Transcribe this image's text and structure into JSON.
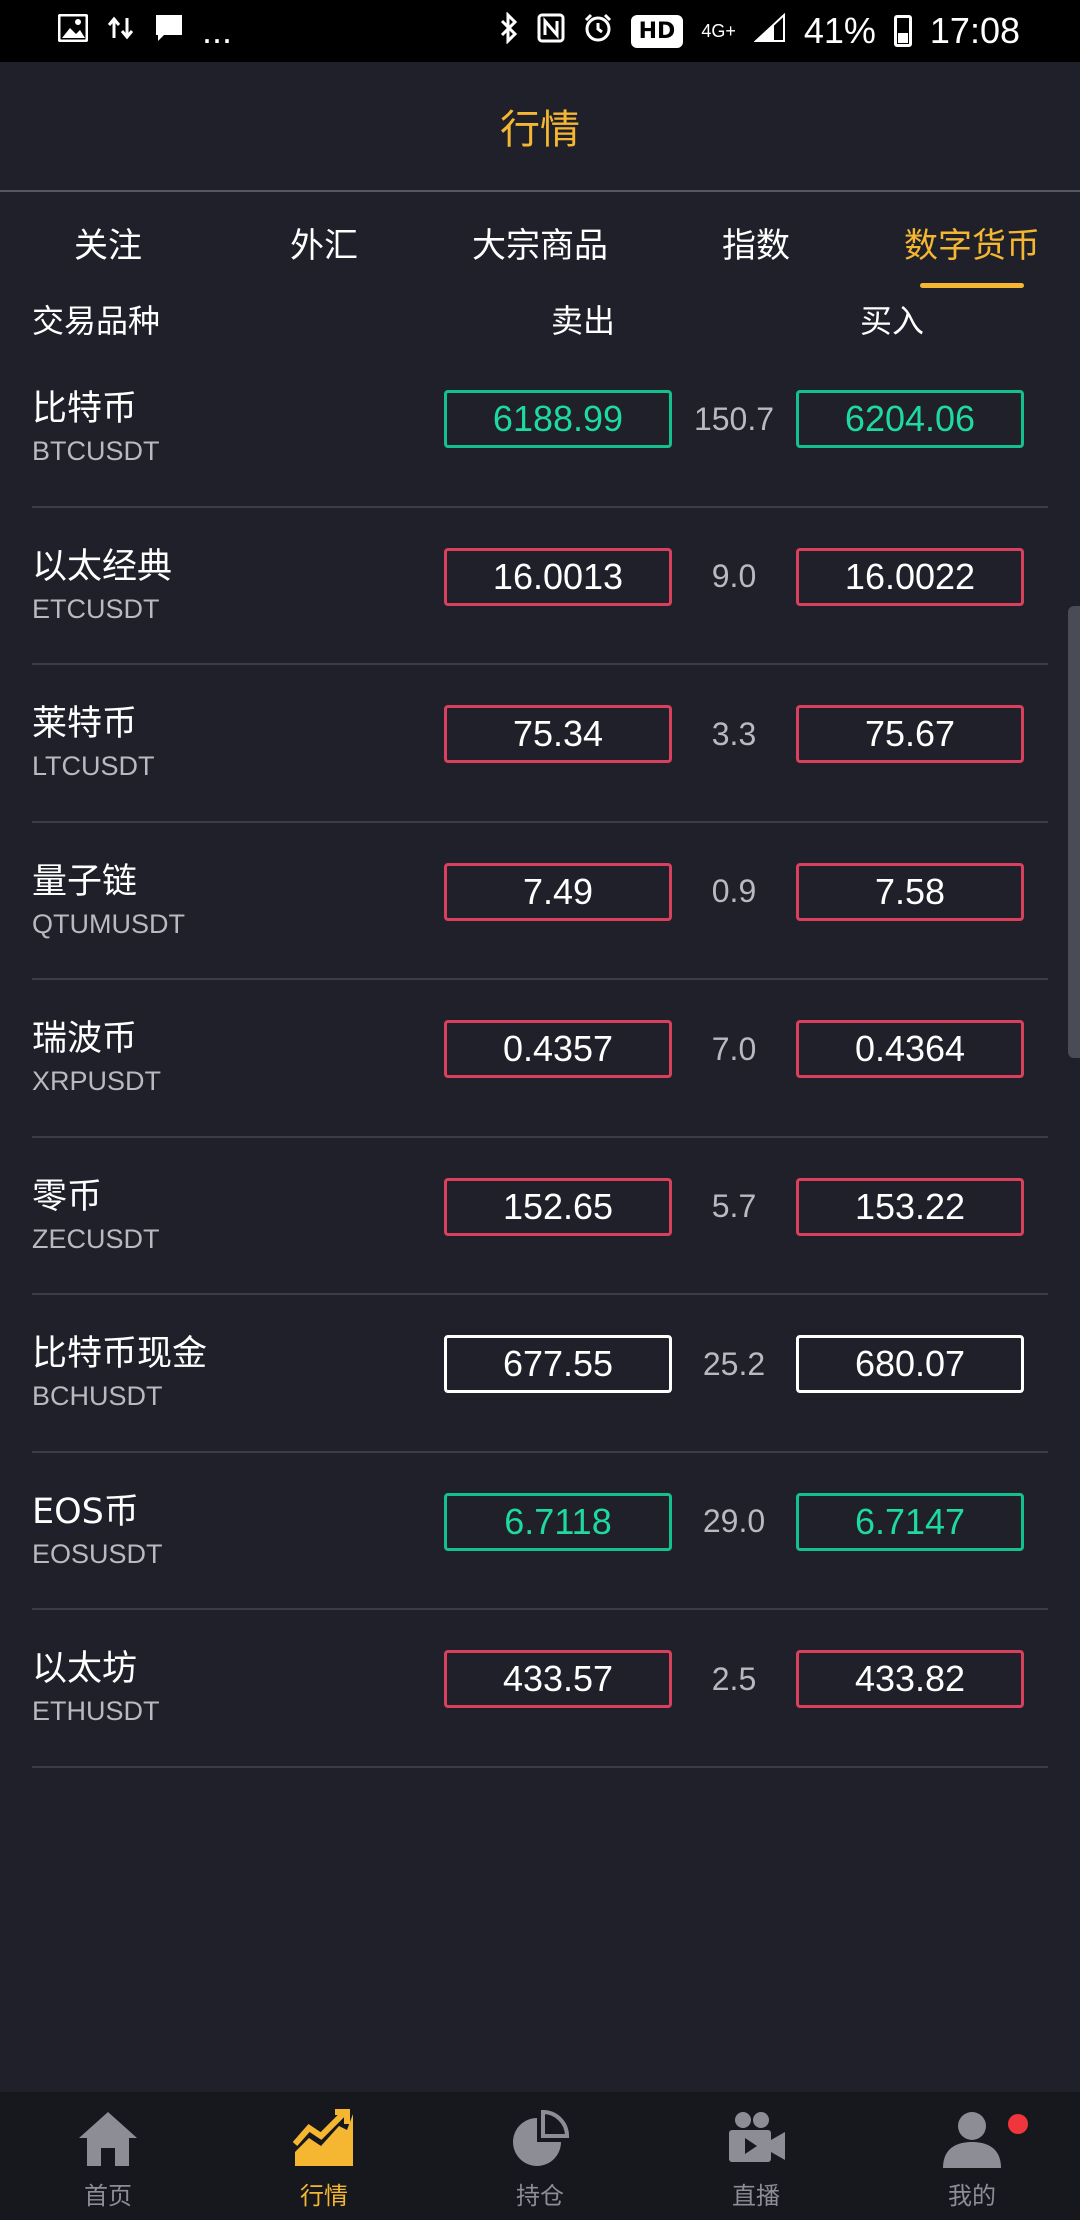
{
  "status_bar": {
    "left_icons": [
      "image-icon",
      "data-sync-icon",
      "message-icon"
    ],
    "more": "...",
    "hd": "HD",
    "network": "4G+",
    "battery": "41%",
    "time": "17:08"
  },
  "header": {
    "title": "行情"
  },
  "tabs": [
    {
      "label": "关注"
    },
    {
      "label": "外汇"
    },
    {
      "label": "大宗商品"
    },
    {
      "label": "指数"
    },
    {
      "label": "数字货币",
      "active": true
    }
  ],
  "columns": {
    "name": "交易品种",
    "sell": "卖出",
    "buy": "买入"
  },
  "rows": [
    {
      "name": "比特币",
      "code": "BTCUSDT",
      "sell": "6188.99",
      "spread": "150.7",
      "buy": "6204.06",
      "trend": "green"
    },
    {
      "name": "以太经典",
      "code": "ETCUSDT",
      "sell": "16.0013",
      "spread": "9.0",
      "buy": "16.0022",
      "trend": "red"
    },
    {
      "name": "莱特币",
      "code": "LTCUSDT",
      "sell": "75.34",
      "spread": "3.3",
      "buy": "75.67",
      "trend": "red"
    },
    {
      "name": "量子链",
      "code": "QTUMUSDT",
      "sell": "7.49",
      "spread": "0.9",
      "buy": "7.58",
      "trend": "red"
    },
    {
      "name": "瑞波币",
      "code": "XRPUSDT",
      "sell": "0.4357",
      "spread": "7.0",
      "buy": "0.4364",
      "trend": "red"
    },
    {
      "name": "零币",
      "code": "ZECUSDT",
      "sell": "152.65",
      "spread": "5.7",
      "buy": "153.22",
      "trend": "red"
    },
    {
      "name": "比特币现金",
      "code": "BCHUSDT",
      "sell": "677.55",
      "spread": "25.2",
      "buy": "680.07",
      "trend": "white"
    },
    {
      "name": "EOS币",
      "code": "EOSUSDT",
      "sell": "6.7118",
      "spread": "29.0",
      "buy": "6.7147",
      "trend": "green"
    },
    {
      "name": "以太坊",
      "code": "ETHUSDT",
      "sell": "433.57",
      "spread": "2.5",
      "buy": "433.82",
      "trend": "red"
    }
  ],
  "colors": {
    "accent": "#f5b731",
    "up_green": "#14c08e",
    "down_red": "#d8405e",
    "background": "#1f2029"
  },
  "bottom_nav": [
    {
      "label": "首页",
      "icon": "home-icon"
    },
    {
      "label": "行情",
      "icon": "market-chart-icon",
      "active": true
    },
    {
      "label": "持仓",
      "icon": "pie-chart-icon"
    },
    {
      "label": "直播",
      "icon": "video-camera-icon"
    },
    {
      "label": "我的",
      "icon": "user-icon",
      "badge": true
    }
  ]
}
